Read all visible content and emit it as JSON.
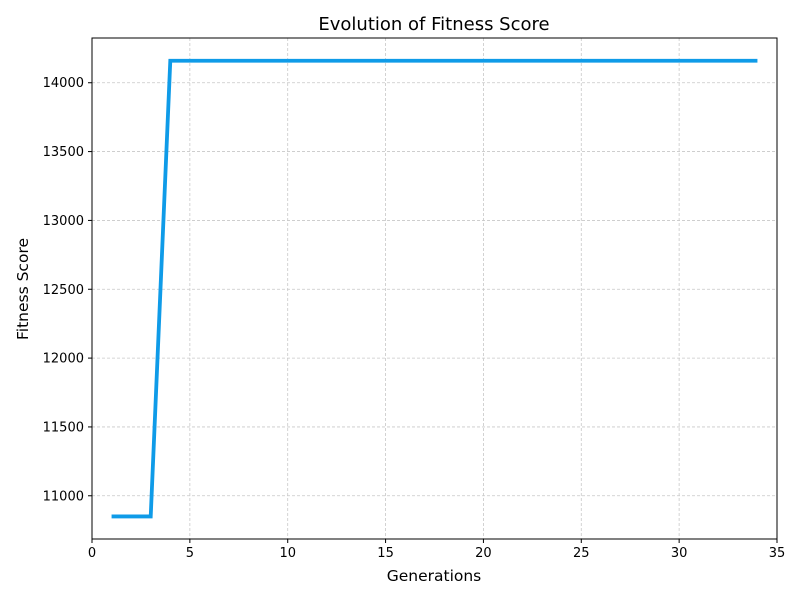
{
  "chart_data": {
    "type": "line",
    "title": "Evolution of Fitness Score",
    "xlabel": "Generations",
    "ylabel": "Fitness Score",
    "xlim": [
      0,
      35
    ],
    "ylim": [
      10686,
      14325
    ],
    "xticks": [
      0,
      5,
      10,
      15,
      20,
      25,
      30,
      35
    ],
    "yticks": [
      11000,
      11500,
      12000,
      12500,
      13000,
      13500,
      14000
    ],
    "grid": true,
    "series": [
      {
        "color": "#0F9BE8",
        "x": [
          1,
          2,
          3,
          4,
          5,
          6,
          7,
          8,
          9,
          10,
          11,
          12,
          13,
          14,
          15,
          16,
          17,
          18,
          19,
          20,
          21,
          22,
          23,
          24,
          25,
          26,
          27,
          28,
          29,
          30,
          31,
          32,
          33,
          34
        ],
        "y": [
          10850,
          10850,
          10850,
          14160,
          14160,
          14160,
          14160,
          14160,
          14160,
          14160,
          14160,
          14160,
          14160,
          14160,
          14160,
          14160,
          14160,
          14160,
          14160,
          14160,
          14160,
          14160,
          14160,
          14160,
          14160,
          14160,
          14160,
          14160,
          14160,
          14160,
          14160,
          14160,
          14160,
          14160
        ]
      }
    ]
  }
}
